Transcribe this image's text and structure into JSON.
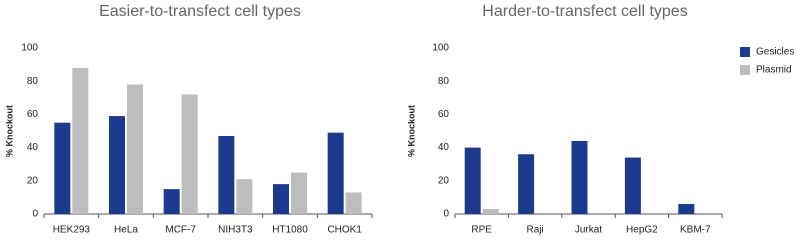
{
  "chart_data": [
    {
      "type": "bar",
      "title": "Easier-to-transfect cell types",
      "y_label": "% Knockout",
      "categories": [
        "HEK293",
        "HeLa",
        "MCF-7",
        "NIH3T3",
        "HT1080",
        "CHOK1"
      ],
      "series": [
        {
          "color": "#1c3b8f",
          "values": [
            55,
            59,
            15,
            47,
            18,
            49
          ]
        },
        {
          "color": "#bdbdbd",
          "values": [
            88,
            78,
            72,
            21,
            25,
            13
          ]
        }
      ],
      "ylim": [
        0,
        100
      ],
      "yticks": [
        0,
        20,
        40,
        60,
        80,
        100
      ],
      "grid": false
    },
    {
      "type": "bar",
      "title": "Harder-to-transfect cell types",
      "y_label": "% Knockout",
      "categories": [
        "RPE",
        "Raji",
        "Jurkat",
        "HepG2",
        "KBM-7"
      ],
      "series": [
        {
          "name": "Gesicles",
          "color": "#1c3b8f",
          "values": [
            40,
            36,
            44,
            34,
            6
          ]
        },
        {
          "name": "Plasmid",
          "color": "#bdbdbd",
          "values": [
            3,
            0,
            0,
            0,
            0
          ]
        }
      ],
      "ylim": [
        0,
        100
      ],
      "yticks": [
        0,
        20,
        40,
        60,
        80,
        100
      ],
      "grid": false,
      "legend": "right"
    }
  ]
}
